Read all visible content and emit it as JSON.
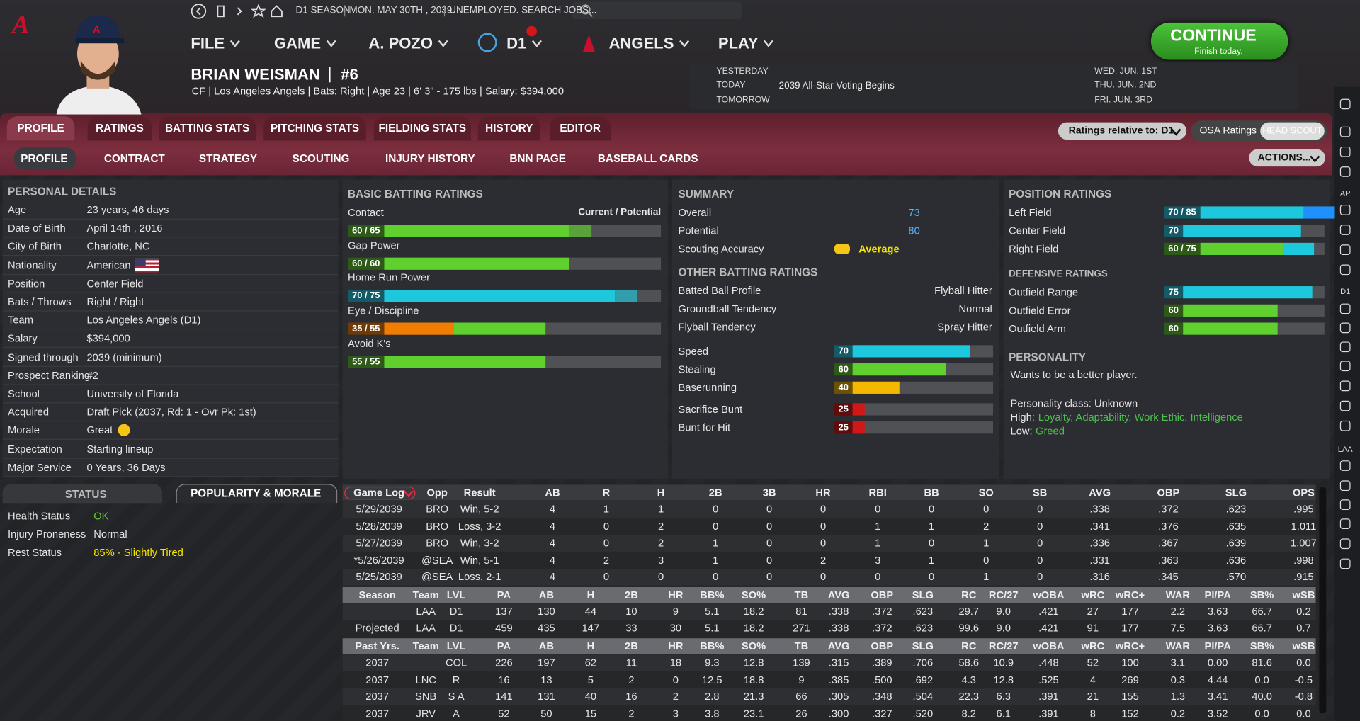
{
  "top_bar": {
    "season": "D1 SEASON",
    "date": "MON. MAY 30TH , 2039",
    "status": "UNEMPLOYED. SEARCH JOBS..."
  },
  "menu": [
    "FILE",
    "GAME",
    "A. POZO",
    "D1",
    "ANGELS",
    "PLAY"
  ],
  "continue_button": {
    "label": "CONTINUE",
    "sublabel": "Finish today."
  },
  "player": {
    "name": "BRIAN WEISMAN",
    "number": "#6",
    "info": "CF | Los Angeles Angels  |  Bats: Right  |  Age 23  |  6' 3\" - 175 lbs  |  Salary: $394,000"
  },
  "calendar": {
    "rows": [
      {
        "label": "YESTERDAY"
      },
      {
        "label": "TODAY",
        "event": "2039 All-Star Voting Begins"
      },
      {
        "label": "TOMORROW"
      }
    ],
    "upcoming": [
      "WED. JUN. 1ST",
      "THU. JUN. 2ND",
      "FRI. JUN. 3RD"
    ]
  },
  "tabs": [
    "PROFILE",
    "RATINGS",
    "BATTING STATS",
    "PITCHING STATS",
    "FIELDING STATS",
    "HISTORY",
    "EDITOR"
  ],
  "subtabs": [
    "PROFILE",
    "CONTRACT",
    "STRATEGY",
    "SCOUTING",
    "INJURY HISTORY",
    "BNN PAGE",
    "BASEBALL CARDS"
  ],
  "controls": {
    "ratings_relative": "Ratings relative to: D1",
    "osa": "OSA Ratings",
    "head_scout": "HEAD SCOUT",
    "actions": "ACTIONS..."
  },
  "sidebar_labels": [
    "AP",
    "D1",
    "LAA"
  ],
  "personal_details": {
    "title": "PERSONAL DETAILS",
    "rows": [
      [
        "Age",
        "23 years, 46 days"
      ],
      [
        "Date of Birth",
        "April 14th , 2016"
      ],
      [
        "City of Birth",
        "Charlotte, NC"
      ],
      [
        "Nationality",
        "American"
      ],
      [
        "Position",
        "Center Field"
      ],
      [
        "Bats / Throws",
        "Right / Right"
      ],
      [
        "Team",
        "Los Angeles Angels (D1)"
      ],
      [
        "Salary",
        "$394,000"
      ],
      [
        "Signed through",
        "2039 (minimum)"
      ],
      [
        "Prospect Ranking",
        "#2"
      ],
      [
        "School",
        "University of Florida"
      ],
      [
        "Acquired",
        "Draft Pick (2037, Rd: 1 - Ovr Pk: 1st)"
      ],
      [
        "Morale",
        "Great"
      ],
      [
        "Expectation",
        "Starting lineup"
      ],
      [
        "Major Service",
        "0 Years, 36 Days"
      ]
    ]
  },
  "status_panel": {
    "tabs": [
      "STATUS",
      "POPULARITY & MORALE"
    ],
    "rows": [
      [
        "Health Status",
        "OK"
      ],
      [
        "Injury Proneness",
        "Normal"
      ],
      [
        "Rest Status",
        "85% - Slightly Tired"
      ]
    ]
  },
  "batting_ratings": {
    "title": "BASIC BATTING RATINGS",
    "legend": "Current / Potential",
    "rows": [
      {
        "name": "Contact",
        "label": "60 / 65",
        "current": 60,
        "potential": 65
      },
      {
        "name": "Gap Power",
        "label": "60 / 60",
        "current": 60,
        "potential": 60
      },
      {
        "name": "Home Run Power",
        "label": "70 / 75",
        "current": 70,
        "potential": 75
      },
      {
        "name": "Eye / Discipline",
        "label": "35 / 55",
        "current": 35,
        "potential": 55
      },
      {
        "name": "Avoid K's",
        "label": "55 / 55",
        "current": 55,
        "potential": 55
      }
    ]
  },
  "summary": {
    "title": "SUMMARY",
    "rows": [
      [
        "Overall",
        73
      ],
      [
        "Potential",
        80
      ],
      [
        "Scouting Accuracy",
        "Average"
      ]
    ]
  },
  "other_batting": {
    "title": "OTHER BATTING RATINGS",
    "rows": [
      [
        "Batted Ball Profile",
        "Flyball Hitter"
      ],
      [
        "Groundball Tendency",
        "Normal"
      ],
      [
        "Flyball Tendency",
        "Spray Hitter"
      ]
    ],
    "bars": [
      {
        "name": "Speed",
        "current": 70
      },
      {
        "name": "Stealing",
        "current": 60
      },
      {
        "name": "Baserunning",
        "current": 40
      },
      {
        "name": "Sacrifice Bunt",
        "current": 25
      },
      {
        "name": "Bunt for Hit",
        "current": 25
      }
    ]
  },
  "position_ratings": {
    "title": "POSITION RATINGS",
    "rows": [
      {
        "name": "Left Field",
        "label": "70 / 85",
        "current": 70,
        "potential": 85
      },
      {
        "name": "Center Field",
        "current": 70
      },
      {
        "name": "Right Field",
        "label": "60 / 75",
        "current": 60,
        "potential": 75
      }
    ]
  },
  "defensive_ratings": {
    "title": "DEFENSIVE RATINGS",
    "rows": [
      {
        "name": "Outfield Range",
        "current": 75
      },
      {
        "name": "Outfield Error",
        "current": 60
      },
      {
        "name": "Outfield Arm",
        "current": 60
      }
    ]
  },
  "personality": {
    "title": "PERSONALITY",
    "description": "Wants to be a better player.",
    "class": "Personality class: Unknown",
    "high_label": "High:",
    "high": "Loyalty, Adaptability, Work Ethic, Intelligence",
    "low_label": "Low:",
    "low": "Greed"
  },
  "game_log": {
    "header": [
      "Game Log",
      "Opp",
      "Result",
      "AB",
      "R",
      "H",
      "2B",
      "3B",
      "HR",
      "RBI",
      "BB",
      "SO",
      "SB",
      "AVG",
      "OBP",
      "SLG",
      "OPS"
    ],
    "rows": [
      [
        "5/29/2039",
        "BRO",
        "Win, 5-2",
        "4",
        "1",
        "1",
        "0",
        "0",
        "0",
        "0",
        "0",
        "0",
        "0",
        ".338",
        ".372",
        ".623",
        ".995"
      ],
      [
        "5/28/2039",
        "BRO",
        "Loss, 3-2",
        "4",
        "0",
        "2",
        "0",
        "0",
        "0",
        "1",
        "1",
        "2",
        "0",
        ".341",
        ".376",
        ".635",
        "1.011"
      ],
      [
        "5/27/2039",
        "BRO",
        "Win, 3-2",
        "4",
        "0",
        "2",
        "1",
        "0",
        "0",
        "1",
        "0",
        "1",
        "0",
        ".336",
        ".367",
        ".639",
        "1.007"
      ],
      [
        "*5/26/2039",
        "@SEA",
        "Win, 5-1",
        "4",
        "2",
        "3",
        "1",
        "0",
        "2",
        "3",
        "1",
        "0",
        "0",
        ".331",
        ".363",
        ".636",
        ".998"
      ],
      [
        "5/25/2039",
        "@SEA",
        "Loss, 2-1",
        "4",
        "0",
        "0",
        "0",
        "0",
        "0",
        "0",
        "0",
        "1",
        "0",
        ".316",
        ".345",
        ".570",
        ".915"
      ]
    ]
  },
  "season_stats": {
    "header": [
      "Season",
      "Team",
      "LVL",
      "PA",
      "AB",
      "H",
      "2B",
      "HR",
      "BB%",
      "SO%",
      "TB",
      "AVG",
      "OBP",
      "SLG",
      "RC",
      "RC/27",
      "wOBA",
      "wRC",
      "wRC+",
      "WAR",
      "PI/PA",
      "SB%",
      "wSB"
    ],
    "rows": [
      [
        null,
        "LAA",
        "D1",
        "137",
        "130",
        "44",
        "10",
        "9",
        "5.1",
        "18.2",
        "81",
        ".338",
        ".372",
        ".623",
        "29.7",
        "9.0",
        ".421",
        "27",
        "177",
        "2.2",
        "3.63",
        "66.7",
        "0.2"
      ],
      [
        "Projected",
        "LAA",
        "D1",
        "459",
        "435",
        "147",
        "33",
        "30",
        "5.1",
        "18.2",
        "271",
        ".338",
        ".372",
        ".623",
        "99.6",
        "9.0",
        ".421",
        "91",
        "177",
        "7.5",
        "3.63",
        "66.7",
        "0.7"
      ]
    ]
  },
  "past_stats": {
    "header": [
      "Past Yrs.",
      "Team",
      "LVL",
      "PA",
      "AB",
      "H",
      "2B",
      "HR",
      "BB%",
      "SO%",
      "TB",
      "AVG",
      "OBP",
      "SLG",
      "RC",
      "RC/27",
      "wOBA",
      "wRC",
      "wRC+",
      "WAR",
      "PI/PA",
      "SB%",
      "wSB"
    ],
    "rows": [
      [
        "2037",
        null,
        "COL",
        "226",
        "197",
        "62",
        "11",
        "18",
        "9.3",
        "12.8",
        "139",
        ".315",
        ".389",
        ".706",
        "58.6",
        "10.9",
        ".448",
        "52",
        "100",
        "3.1",
        "0.00",
        "81.6",
        "0.0"
      ],
      [
        "2037",
        "LNC",
        "R",
        "16",
        "13",
        "5",
        "2",
        "0",
        "12.5",
        "18.8",
        "9",
        ".385",
        ".500",
        ".692",
        "4.3",
        "12.8",
        ".525",
        "4",
        "269",
        "0.3",
        "4.44",
        "0.0",
        "-0.5"
      ],
      [
        "2037",
        "SNB",
        "S A",
        "141",
        "131",
        "40",
        "16",
        "2",
        "2.8",
        "21.3",
        "66",
        ".305",
        ".348",
        ".504",
        "22.3",
        "6.3",
        ".391",
        "21",
        "155",
        "1.3",
        "3.41",
        "40.0",
        "-0.8"
      ],
      [
        "2037",
        "JRV",
        "A",
        "52",
        "50",
        "15",
        "2",
        "3",
        "3.8",
        "23.1",
        "26",
        ".300",
        ".327",
        ".520",
        "8.2",
        "6.1",
        ".391",
        "8",
        "152",
        "0.2",
        "3.52",
        "0.0",
        "0.0"
      ]
    ]
  }
}
